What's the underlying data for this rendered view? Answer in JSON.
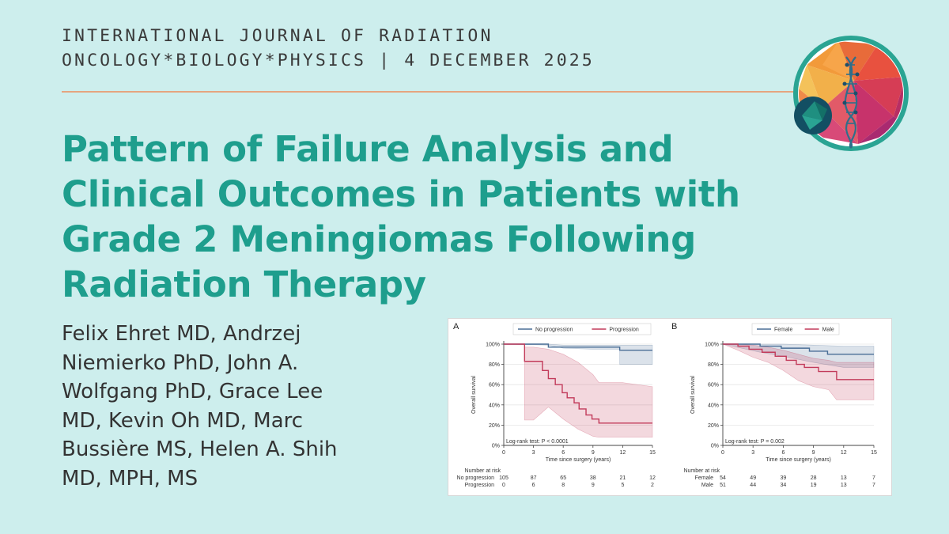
{
  "journal": {
    "line1": "INTERNATIONAL JOURNAL OF RADIATION",
    "line2": "ONCOLOGY*BIOLOGY*PHYSICS | 4 DECEMBER 2025"
  },
  "title_lines": [
    "Pattern of Failure Analysis and",
    "Clinical Outcomes in Patients with",
    "Grade 2 Meningiomas Following",
    "Radiation Therapy"
  ],
  "author_lines": [
    "Felix Ehret MD, Andrzej",
    "Niemierko PhD, John A.",
    "Wolfgang PhD, Grace Lee",
    "MD, Kevin Oh MD, Marc",
    "Bussière MS, Helen A. Shih",
    "MD, MPH, MS"
  ],
  "colors": {
    "background": "#cdeeed",
    "title": "#1e9e8d",
    "divider": "#e5a57f",
    "series_blue": "#4a6e96",
    "series_red": "#c23a5a"
  },
  "icons": [
    "brain-dna-logo-icon"
  ],
  "chart_data": [
    {
      "type": "line",
      "panel": "A",
      "xlabel": "Time since surgery (years)",
      "ylabel": "Overall survival",
      "xlim": [
        0,
        15
      ],
      "ylim": [
        0,
        100
      ],
      "xticks": [
        0,
        3,
        6,
        9,
        12,
        15
      ],
      "yticks": [
        "0%",
        "20%",
        "40%",
        "60%",
        "80%",
        "100%"
      ],
      "test_label": "Log-rank test: P < 0.0001",
      "legend_placement": "top",
      "series": [
        {
          "name": "No progression",
          "color": "#4a6e96",
          "points": [
            [
              0,
              100
            ],
            [
              4.5,
              100
            ],
            [
              4.5,
              97
            ],
            [
              11.7,
              97
            ],
            [
              11.7,
              94
            ],
            [
              15,
              94
            ]
          ],
          "ci": [
            [
              0,
              100,
              100
            ],
            [
              4.5,
              100,
              99
            ],
            [
              6,
              99,
              96
            ],
            [
              9,
              99,
              95
            ],
            [
              11.7,
              99,
              95
            ],
            [
              11.7,
              99,
              80
            ],
            [
              15,
              99,
              80
            ]
          ]
        },
        {
          "name": "Progression",
          "color": "#c23a5a",
          "points": [
            [
              0,
              100
            ],
            [
              2.1,
              100
            ],
            [
              2.1,
              83
            ],
            [
              3.9,
              83
            ],
            [
              3.9,
              74
            ],
            [
              4.5,
              74
            ],
            [
              4.5,
              66
            ],
            [
              5.2,
              66
            ],
            [
              5.2,
              60
            ],
            [
              5.9,
              60
            ],
            [
              5.9,
              52
            ],
            [
              6.4,
              52
            ],
            [
              6.4,
              47
            ],
            [
              7.1,
              47
            ],
            [
              7.1,
              42
            ],
            [
              7.6,
              42
            ],
            [
              7.6,
              36
            ],
            [
              8.3,
              36
            ],
            [
              8.3,
              30
            ],
            [
              8.9,
              30
            ],
            [
              8.9,
              26
            ],
            [
              9.6,
              26
            ],
            [
              9.6,
              22
            ],
            [
              15,
              22
            ]
          ],
          "ci": [
            [
              0,
              100,
              100
            ],
            [
              2.1,
              100,
              100
            ],
            [
              2.1,
              97,
              25
            ],
            [
              3,
              97,
              25
            ],
            [
              4.5,
              95,
              38
            ],
            [
              6,
              90,
              26
            ],
            [
              7.5,
              82,
              16
            ],
            [
              9,
              70,
              9
            ],
            [
              9.6,
              62,
              8
            ],
            [
              12,
              62,
              8
            ],
            [
              15,
              58,
              8
            ]
          ]
        }
      ],
      "risk_table": {
        "header": "Number at risk",
        "times": [
          0,
          3,
          6,
          9,
          12,
          15
        ],
        "rows": [
          {
            "label": "No progression",
            "values": [
              105,
              87,
              65,
              38,
              21,
              12
            ]
          },
          {
            "label": "Progression",
            "values": [
              0,
              6,
              8,
              9,
              5,
              2
            ]
          }
        ]
      }
    },
    {
      "type": "line",
      "panel": "B",
      "xlabel": "Time since surgery (years)",
      "ylabel": "Overall survival",
      "xlim": [
        0,
        15
      ],
      "ylim": [
        0,
        100
      ],
      "xticks": [
        0,
        3,
        6,
        9,
        12,
        15
      ],
      "yticks": [
        "0%",
        "20%",
        "40%",
        "60%",
        "80%",
        "100%"
      ],
      "test_label": "Log-rank test: P = 0.002",
      "legend_placement": "top",
      "series": [
        {
          "name": "Female",
          "color": "#4a6e96",
          "points": [
            [
              0,
              100
            ],
            [
              3.7,
              100
            ],
            [
              3.7,
              98
            ],
            [
              5.8,
              98
            ],
            [
              5.8,
              96
            ],
            [
              8.6,
              96
            ],
            [
              8.6,
              93
            ],
            [
              10.4,
              93
            ],
            [
              10.4,
              90
            ],
            [
              15,
              90
            ]
          ],
          "ci": [
            [
              0,
              100,
              100
            ],
            [
              3.7,
              100,
              92
            ],
            [
              6,
              100,
              88
            ],
            [
              9,
              99,
              82
            ],
            [
              12,
              98,
              77
            ],
            [
              15,
              98,
              77
            ]
          ]
        },
        {
          "name": "Male",
          "color": "#c23a5a",
          "points": [
            [
              0,
              100
            ],
            [
              1.5,
              100
            ],
            [
              1.5,
              98
            ],
            [
              2.6,
              98
            ],
            [
              2.6,
              95
            ],
            [
              3.9,
              95
            ],
            [
              3.9,
              92
            ],
            [
              5.2,
              92
            ],
            [
              5.2,
              88
            ],
            [
              6.3,
              88
            ],
            [
              6.3,
              84
            ],
            [
              7.3,
              84
            ],
            [
              7.3,
              80
            ],
            [
              8.1,
              80
            ],
            [
              8.1,
              77
            ],
            [
              9.5,
              77
            ],
            [
              9.5,
              73
            ],
            [
              11.3,
              73
            ],
            [
              11.3,
              65
            ],
            [
              15,
              65
            ]
          ],
          "ci": [
            [
              0,
              100,
              100
            ],
            [
              1.5,
              100,
              94
            ],
            [
              3,
              99,
              87
            ],
            [
              4.5,
              97,
              82
            ],
            [
              6,
              94,
              74
            ],
            [
              7.5,
              90,
              64
            ],
            [
              9,
              86,
              58
            ],
            [
              10.5,
              84,
              55
            ],
            [
              11.3,
              82,
              45
            ],
            [
              15,
              82,
              45
            ]
          ]
        }
      ],
      "risk_table": {
        "header": "Number at risk",
        "times": [
          0,
          3,
          6,
          9,
          12,
          15
        ],
        "rows": [
          {
            "label": "Female",
            "values": [
              54,
              49,
              39,
              28,
              13,
              7
            ]
          },
          {
            "label": "Male",
            "values": [
              51,
              44,
              34,
              19,
              13,
              7
            ]
          }
        ]
      }
    }
  ]
}
